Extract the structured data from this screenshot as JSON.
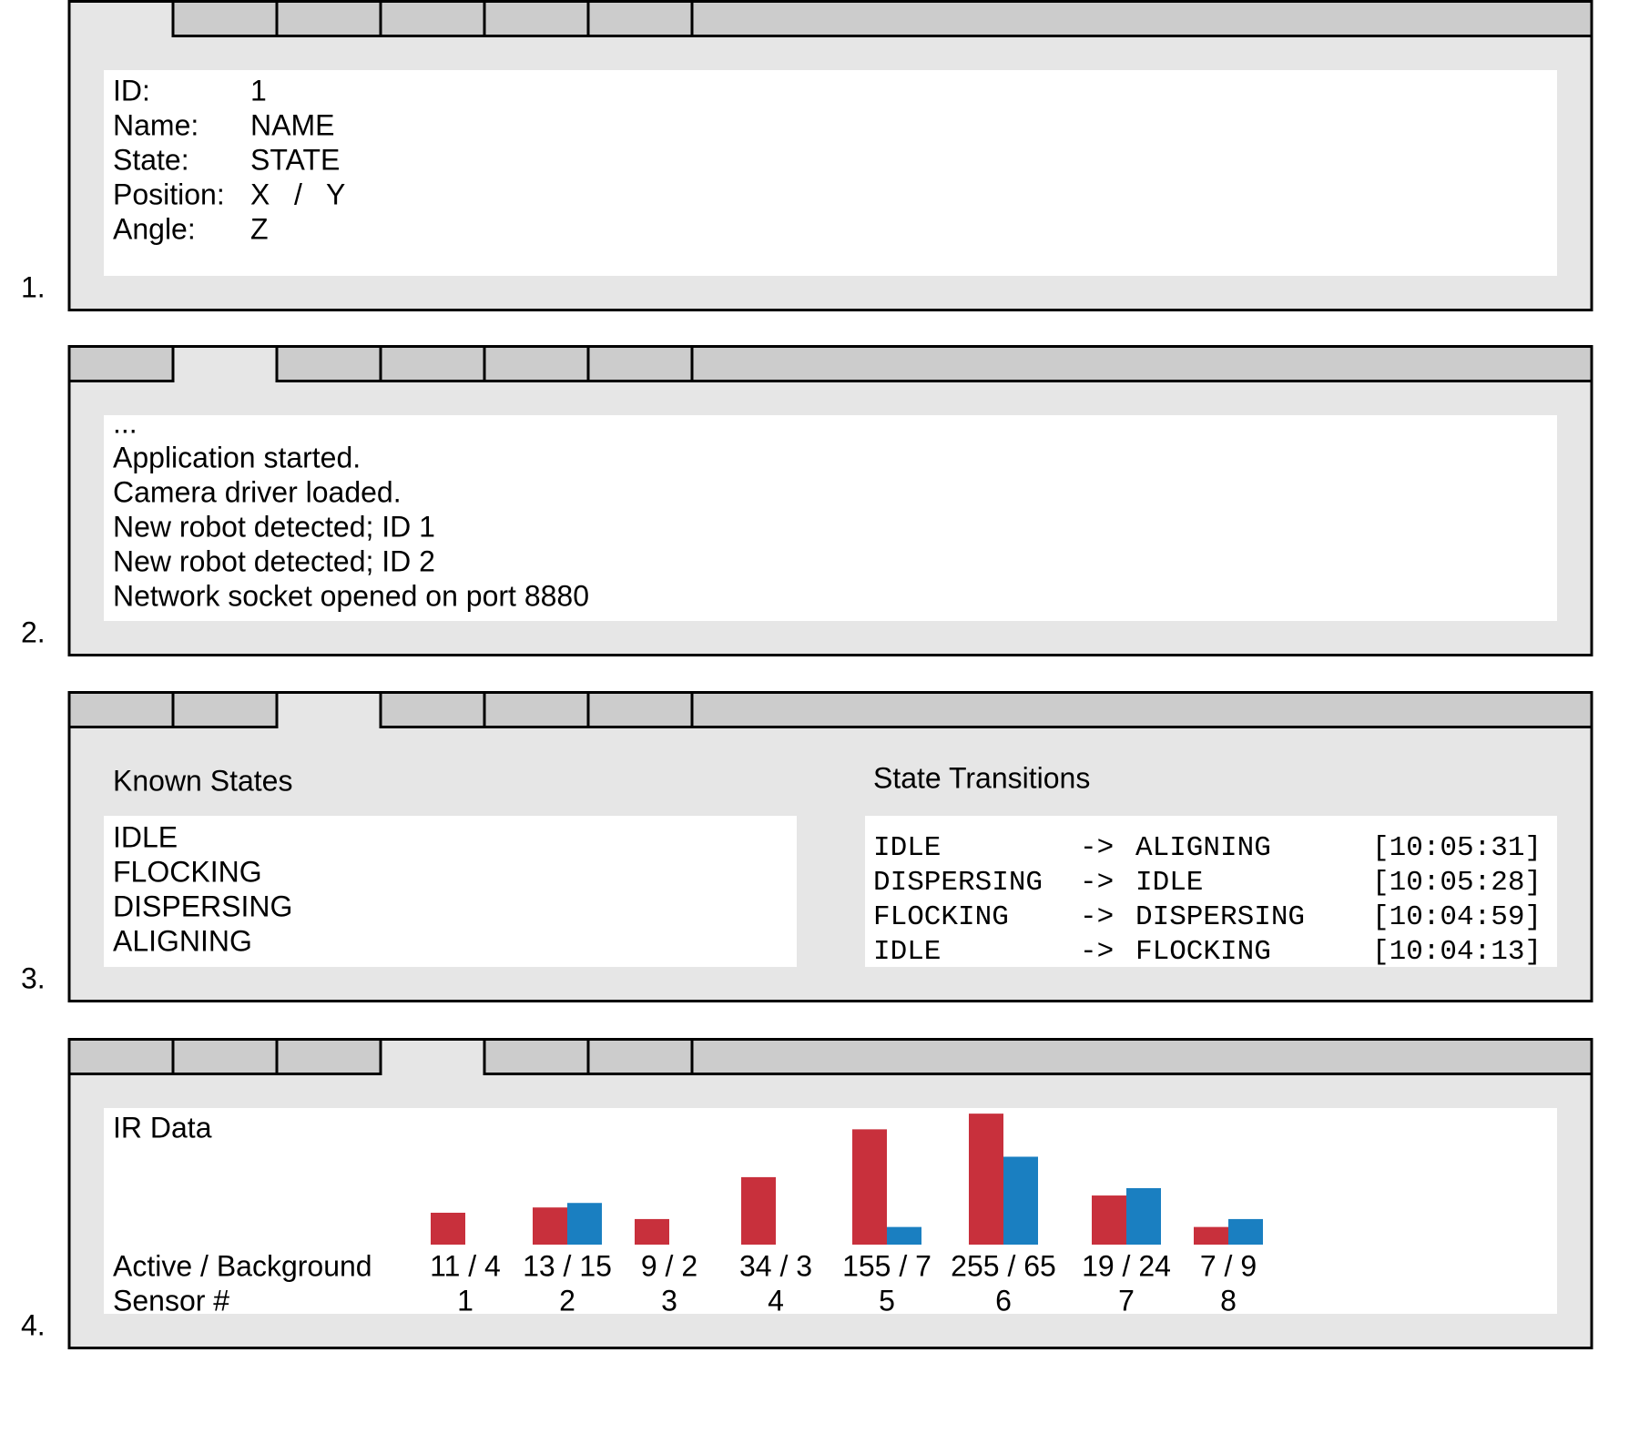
{
  "panel_numbers": [
    "1.",
    "2.",
    "3.",
    "4."
  ],
  "details": [
    [
      "ID:",
      "1"
    ],
    [
      "Name:",
      "NAME"
    ],
    [
      "State:",
      "STATE"
    ],
    [
      "Position:",
      "X   /   Y"
    ],
    [
      "Angle:",
      "Z"
    ]
  ],
  "log": [
    "...",
    "Application started.",
    "Camera driver loaded.",
    "New robot detected; ID 1",
    "New robot detected; ID 2",
    "Network socket opened on port 8880"
  ],
  "states": {
    "known_title": "Known States",
    "known": [
      "IDLE",
      "FLOCKING",
      "DISPERSING",
      "ALIGNING"
    ],
    "transitions_title": "State Transitions",
    "transitions": [
      [
        "IDLE",
        "->",
        "ALIGNING",
        "[10:05:31]"
      ],
      [
        "DISPERSING",
        "->",
        "IDLE",
        "[10:05:28]"
      ],
      [
        "FLOCKING",
        "->",
        "DISPERSING",
        "[10:04:59]"
      ],
      [
        "IDLE",
        "->",
        "FLOCKING",
        "[10:04:13]"
      ]
    ]
  },
  "ir_data": {
    "title": "IR Data",
    "row_label": "Active / Background",
    "sensor_label": "Sensor #",
    "sensors": [
      "1",
      "2",
      "3",
      "4",
      "5",
      "6",
      "7",
      "8"
    ],
    "active": [
      11,
      13,
      9,
      34,
      155,
      255,
      19,
      7
    ],
    "background": [
      4,
      15,
      2,
      3,
      7,
      65,
      24,
      9
    ],
    "value_labels": [
      "11 / 4",
      "13 / 15",
      "9 / 2",
      "34 / 3",
      "155 / 7",
      "255 / 65",
      "19 / 24",
      "7 / 9"
    ],
    "active_color": "#c8303c",
    "background_color": "#1a7fc1",
    "log_scale": true
  }
}
